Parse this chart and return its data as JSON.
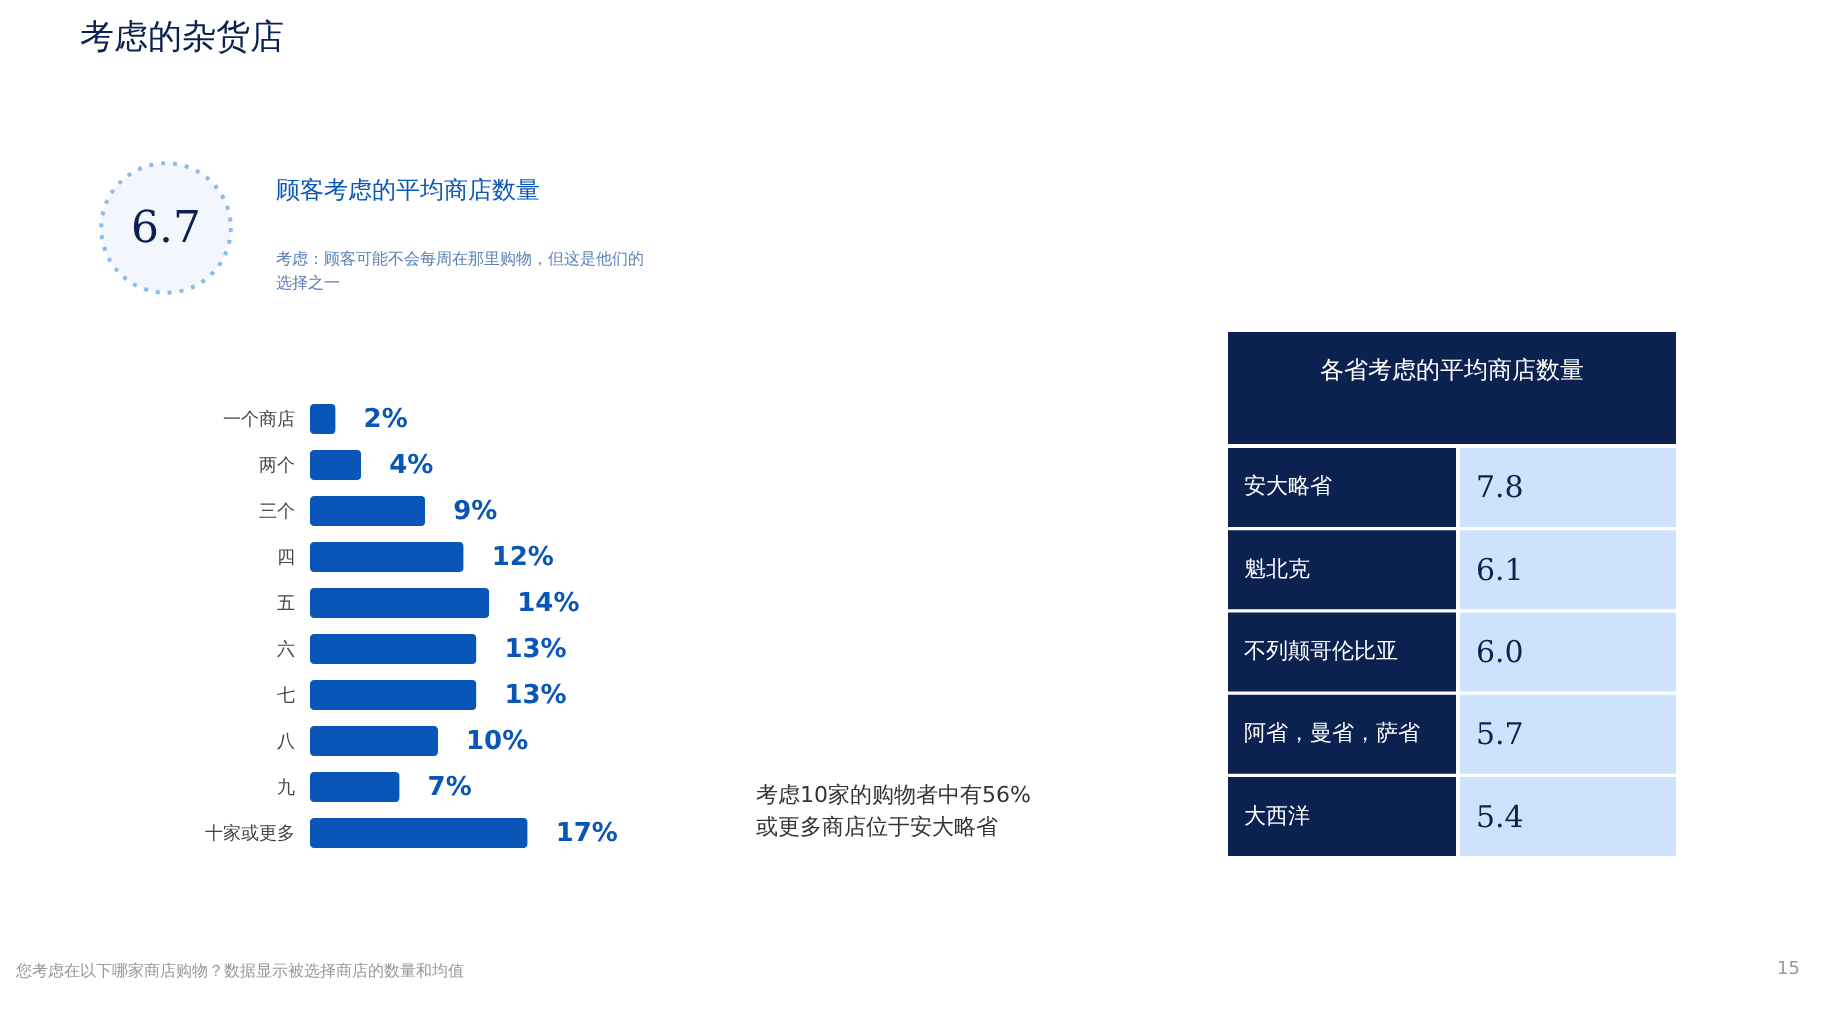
{
  "chart_data": [
    {
      "type": "bar",
      "orientation": "horizontal",
      "title": "考虑的杂货店",
      "subtitle": "顾客考虑的平均商店数量",
      "categories": [
        "一个商店",
        "两个",
        "三个",
        "四",
        "五",
        "六",
        "七",
        "八",
        "九",
        "十家或更多"
      ],
      "values": [
        2,
        4,
        9,
        12,
        14,
        13,
        13,
        10,
        7,
        17
      ],
      "value_labels": [
        "2%",
        "4%",
        "9%",
        "12%",
        "14%",
        "13%",
        "13%",
        "10%",
        "7%",
        "17%"
      ],
      "color": "#0a56b8",
      "annotations": [
        "6.7",
        "考虑：顾客可能不会每周在那里购物，但这是他们的",
        "选择之一",
        "考虑10家的购物者中有56%",
        "或更多商店位于安大略省",
        "您考虑在以下哪家商店购物？数据显示被选择商店的数量和均值"
      ]
    },
    {
      "type": "other",
      "title": "各省考虑的平均商店数量",
      "categories": [
        "安大略省",
        "魁北克",
        "不列颠哥伦比亚",
        "阿省，曼省，萨省",
        "大西洋"
      ],
      "values": [
        7.8,
        6.1,
        6.0,
        5.7,
        5.4
      ],
      "value_labels": [
        "7.8",
        "6.1",
        "6.0",
        "5.7",
        "5.4"
      ],
      "annotations": [
        "15"
      ]
    }
  ]
}
